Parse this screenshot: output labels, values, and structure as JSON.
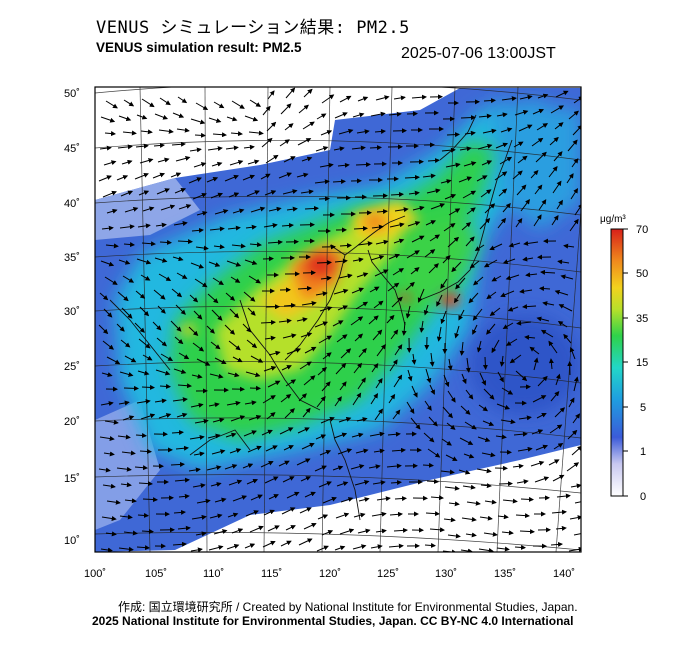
{
  "header": {
    "title_jp": "VENUS シミュレーション結果: PM2.5",
    "title_en": "VENUS simulation result: PM2.5",
    "timestamp": "2025-07-06 13:00JST"
  },
  "map": {
    "latitude_labels": [
      "50˚",
      "45˚",
      "40˚",
      "35˚",
      "30˚",
      "25˚",
      "20˚",
      "15˚",
      "10˚"
    ],
    "longitude_labels": [
      "100˚",
      "105˚",
      "110˚",
      "115˚",
      "120˚",
      "125˚",
      "130˚",
      "135˚",
      "140˚"
    ],
    "colorbar": {
      "unit": "μg/m³",
      "labels": [
        "70",
        "50",
        "35",
        "15",
        "5",
        "1",
        "0"
      ]
    }
  },
  "footer": {
    "credit_line1": "作成: 国立環境研究所 / Created by National Institute for Environmental Studies, Japan.",
    "credit_line2": "2025 National Institute for Environmental Studies, Japan. CC BY-NC 4.0 International"
  },
  "colors": {
    "sea_background": "#3d6cd8",
    "high_concentration": "#e0301a",
    "land_unmodeled": "#ffffff"
  }
}
